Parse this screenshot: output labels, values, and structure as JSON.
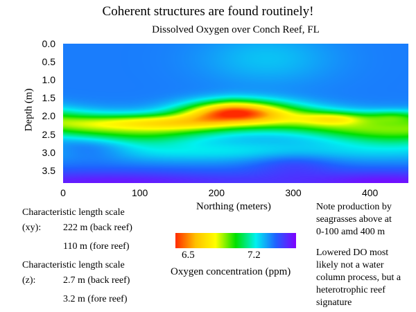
{
  "chart_data": {
    "type": "heatmap",
    "title": "Coherent structures are found routinely!",
    "subtitle": "Dissolved Oxygen over Conch Reef, FL",
    "xlabel": "Northing (meters)",
    "ylabel": "Depth (m)",
    "xlim": [
      0,
      450
    ],
    "ylim": [
      3.85,
      0
    ],
    "x_ticks": [
      "0",
      "100",
      "200",
      "300",
      "400"
    ],
    "y_ticks": [
      "0.0",
      "0.5",
      "1.0",
      "1.5",
      "2.0",
      "2.5",
      "3.0",
      "3.5"
    ],
    "colorbar": {
      "label": "Oxygen concentration (ppm)",
      "ticks": [
        "6.5",
        "7.2"
      ],
      "colors": [
        "#ff2a00",
        "#ffc000",
        "#ffff00",
        "#00e000",
        "#00f0f0",
        "#2060ff",
        "#8000ff"
      ]
    },
    "features": [
      {
        "x": 220,
        "depth": 1.85,
        "value": 6.45
      },
      {
        "x": 120,
        "depth": 2.2,
        "value": 6.75
      },
      {
        "x": 350,
        "depth": 2.0,
        "value": 6.95
      },
      {
        "x": 50,
        "depth": 3.6,
        "value": 7.3
      },
      {
        "x": 420,
        "depth": 3.7,
        "value": 7.3
      }
    ]
  },
  "left_notes": {
    "xy_heading": "Characteristic length scale",
    "xy_label": "(xy):",
    "xy_back": "222 m (back reef)",
    "xy_fore": "110 m (fore reef)",
    "z_heading": "Characteristic length scale",
    "z_label": "(z):",
    "z_back": "2.7 m (back reef)",
    "z_fore": "3.2 m (fore reef)"
  },
  "right_notes": {
    "note1": [
      "Note production by",
      "seagrasses above at",
      "0-100 amd 400 m"
    ],
    "note2": [
      "Lowered DO most",
      "likely not a water",
      "column process, but a",
      "heterotrophic reef",
      "signature"
    ]
  }
}
